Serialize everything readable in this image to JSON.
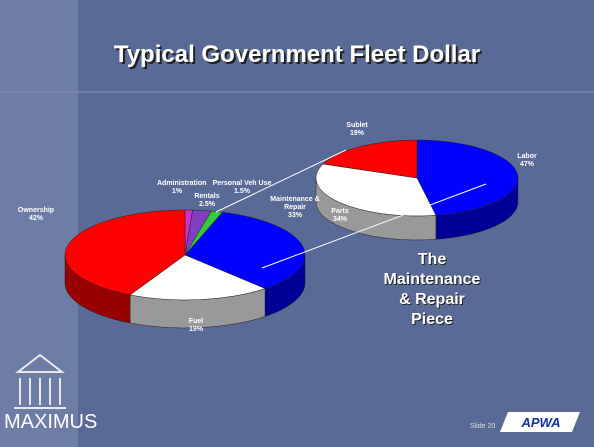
{
  "title": "Typical Government Fleet Dollar",
  "chart_data": [
    {
      "type": "pie3d",
      "categories": [
        "Administration",
        "Rentals",
        "Personal Veh Use",
        "Maintenance & Repair",
        "Fuel",
        "Ownership"
      ],
      "values": [
        1,
        2.5,
        1.5,
        33,
        19,
        42
      ],
      "value_labels": [
        "1%",
        "2.5%",
        "1.5%",
        "33%",
        "19%",
        "42%"
      ],
      "colors": [
        "#cc33cc",
        "#7f3fbf",
        "#33cc33",
        "#0000ff",
        "#ffffff",
        "#ff0000"
      ]
    },
    {
      "type": "pie3d",
      "categories": [
        "Labor",
        "Parts",
        "Sublet"
      ],
      "values": [
        47,
        34,
        19
      ],
      "value_labels": [
        "47%",
        "34%",
        "19%"
      ],
      "colors": [
        "#0000ff",
        "#ffffff",
        "#ff0000"
      ]
    }
  ],
  "callout": [
    "The",
    "Maintenance",
    "& Repair",
    "Piece"
  ],
  "slide_number": "Slide 20",
  "company_logo": "MAXIMUS",
  "partner_logo": "APWA"
}
